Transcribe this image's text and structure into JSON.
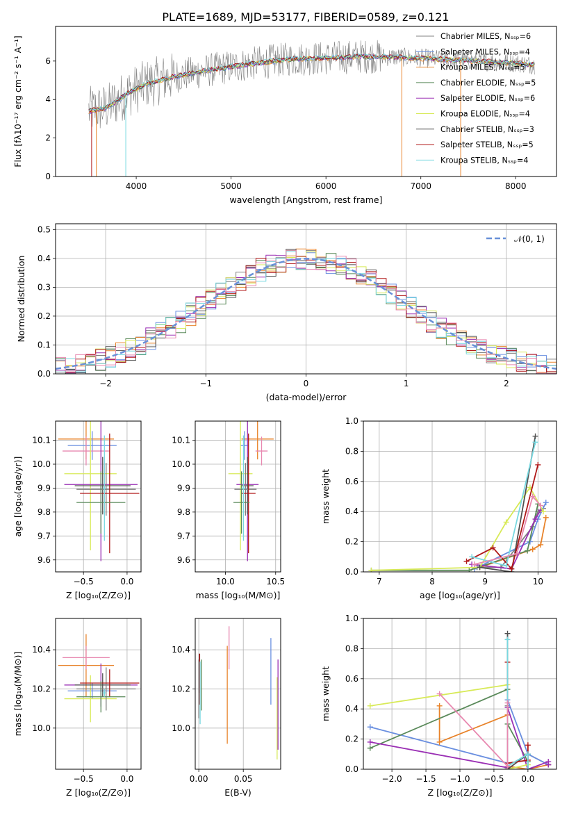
{
  "figure": {
    "title": "PLATE=1689, MJD=53177, FIBERID=0589, z=0.121"
  },
  "colors": {
    "chabrier_miles": "#808080",
    "salpeter_miles": "#6a8fe0",
    "kroupa_miles": "#e8832a",
    "chabrier_elodie": "#5a8a5a",
    "salpeter_elodie": "#9a2fb4",
    "kroupa_elodie": "#d8ea58",
    "chabrier_stelib": "#505050",
    "salpeter_stelib": "#b01818",
    "kroupa_stelib": "#78d8e0",
    "pink": "#e888b0",
    "normal_curve": "#6890d8"
  },
  "chart_data": [
    {
      "id": "spectrum",
      "type": "line",
      "xlabel": "wavelength [Angstrom, rest frame]",
      "ylabel": "Flux [fλ10⁻¹⁷ erg cm⁻² s⁻¹ A⁻¹]",
      "xlim": [
        3150,
        8430
      ],
      "ylim": [
        0,
        7.8
      ],
      "xticks": [
        4000,
        5000,
        6000,
        7000,
        8000
      ],
      "yticks": [
        0,
        2,
        4,
        6
      ],
      "legend_position": "top-right",
      "legend": [
        {
          "label": "Chabrier MILES, Nₛₛₚ=6",
          "color": "chabrier_miles"
        },
        {
          "label": "Salpeter MILES, Nₛₛₚ=4",
          "color": "salpeter_miles"
        },
        {
          "label": "Kroupa MILES, Nₛₛₚ=5",
          "color": "kroupa_miles"
        },
        {
          "label": "Chabrier ELODIE, Nₛₛₚ=5",
          "color": "chabrier_elodie"
        },
        {
          "label": "Salpeter ELODIE, Nₛₛₚ=6",
          "color": "salpeter_elodie"
        },
        {
          "label": "Kroupa ELODIE, Nₛₛₚ=4",
          "color": "kroupa_elodie"
        },
        {
          "label": "Chabrier STELIB, Nₛₛₚ=3",
          "color": "chabrier_stelib"
        },
        {
          "label": "Salpeter STELIB, Nₛₛₚ=5",
          "color": "salpeter_stelib"
        },
        {
          "label": "Kroupa STELIB, Nₛₛₚ=4",
          "color": "kroupa_stelib"
        }
      ],
      "continuum": [
        [
          3500,
          3.4
        ],
        [
          3700,
          3.6
        ],
        [
          3900,
          4.3
        ],
        [
          4100,
          4.8
        ],
        [
          4400,
          5.2
        ],
        [
          4800,
          5.55
        ],
        [
          5200,
          5.85
        ],
        [
          5600,
          6.1
        ],
        [
          6000,
          6.15
        ],
        [
          6400,
          6.25
        ],
        [
          6800,
          6.2
        ],
        [
          7200,
          6.1
        ],
        [
          7600,
          6.0
        ],
        [
          8000,
          5.9
        ],
        [
          8200,
          5.8
        ]
      ]
    },
    {
      "id": "residuals",
      "type": "histogram",
      "xlabel": "(data-model)/error",
      "ylabel": "Normed distribution",
      "xlim": [
        -2.5,
        2.5
      ],
      "ylim": [
        0,
        0.52
      ],
      "xticks": [
        -2,
        -1,
        0,
        1,
        2
      ],
      "yticks": [
        0.0,
        0.1,
        0.2,
        0.3,
        0.4,
        0.5
      ],
      "bin_width": 0.1,
      "legend_position": "top-right",
      "normal_label": "𝒩(0, 1)",
      "normal_mean": 0,
      "normal_sigma": 1
    },
    {
      "id": "age_vs_Z",
      "type": "errorbar",
      "xlabel": "Z [log₁₀(Z/Z⊙)]",
      "ylabel": "age  [log₁₀(age/yr)]",
      "xlim": [
        -0.82,
        0.16
      ],
      "ylim": [
        9.55,
        10.18
      ],
      "xticks": [
        -0.5,
        0.0
      ],
      "yticks": [
        9.6,
        9.7,
        9.8,
        9.9,
        10.0,
        10.1
      ],
      "points": [
        {
          "x": -0.47,
          "xerr": 0.32,
          "y": 10.105,
          "yerr": 0.085,
          "color": "kroupa_miles"
        },
        {
          "x": -0.4,
          "xerr": 0.28,
          "y": 10.078,
          "yerr": 0.06,
          "color": "salpeter_miles"
        },
        {
          "x": -0.47,
          "xerr": 0.27,
          "y": 10.055,
          "yerr": 0.06,
          "color": "pink"
        },
        {
          "x": -0.42,
          "xerr": 0.3,
          "y": 9.96,
          "yerr": 0.32,
          "color": "kroupa_elodie"
        },
        {
          "x": -0.3,
          "xerr": 0.42,
          "y": 9.915,
          "yerr": 0.32,
          "color": "salpeter_elodie"
        },
        {
          "x": -0.28,
          "xerr": 0.32,
          "y": 9.91,
          "yerr": 0.12,
          "color": "chabrier_stelib"
        },
        {
          "x": -0.24,
          "xerr": 0.34,
          "y": 9.895,
          "yerr": 0.11,
          "color": "chabrier_miles"
        },
        {
          "x": -0.2,
          "xerr": 0.34,
          "y": 9.878,
          "yerr": 0.25,
          "color": "salpeter_stelib"
        },
        {
          "x": -0.3,
          "xerr": 0.28,
          "y": 9.84,
          "yerr": 0.13,
          "color": "chabrier_elodie"
        },
        {
          "x": -0.26,
          "xerr": 0.02,
          "y": 9.9,
          "yerr": 0.22,
          "color": "kroupa_stelib"
        }
      ]
    },
    {
      "id": "age_vs_mass",
      "type": "errorbar",
      "xlabel": "mass [log₁₀(M/M⊙)]",
      "ylabel": "",
      "xlim": [
        9.7,
        10.55
      ],
      "ylim": [
        9.55,
        10.18
      ],
      "xticks": [
        10.0,
        10.5
      ],
      "yticks": [
        9.6,
        9.7,
        9.8,
        9.9,
        10.0,
        10.1
      ],
      "points": [
        {
          "x": 10.32,
          "xerr": 0.16,
          "y": 10.105,
          "yerr": 0.085,
          "color": "kroupa_miles"
        },
        {
          "x": 10.19,
          "xerr": 0.04,
          "y": 10.078,
          "yerr": 0.06,
          "color": "salpeter_miles"
        },
        {
          "x": 10.36,
          "xerr": 0.06,
          "y": 10.055,
          "yerr": 0.06,
          "color": "pink"
        },
        {
          "x": 10.15,
          "xerr": 0.12,
          "y": 9.96,
          "yerr": 0.32,
          "color": "kroupa_elodie"
        },
        {
          "x": 10.22,
          "xerr": 0.11,
          "y": 9.915,
          "yerr": 0.32,
          "color": "salpeter_elodie"
        },
        {
          "x": 10.22,
          "xerr": 0.06,
          "y": 9.91,
          "yerr": 0.12,
          "color": "chabrier_stelib"
        },
        {
          "x": 10.2,
          "xerr": 0.11,
          "y": 9.895,
          "yerr": 0.11,
          "color": "chabrier_miles"
        },
        {
          "x": 10.23,
          "xerr": 0.07,
          "y": 9.878,
          "yerr": 0.25,
          "color": "salpeter_stelib"
        },
        {
          "x": 10.16,
          "xerr": 0.08,
          "y": 9.84,
          "yerr": 0.13,
          "color": "chabrier_elodie"
        },
        {
          "x": 10.18,
          "xerr": 0.02,
          "y": 9.9,
          "yerr": 0.22,
          "color": "kroupa_stelib"
        }
      ]
    },
    {
      "id": "weight_vs_age",
      "type": "line",
      "xlabel": "age  [log₁₀(age/yr)]",
      "ylabel": "mass weight",
      "xlim": [
        6.7,
        10.35
      ],
      "ylim": [
        0,
        1.0
      ],
      "xticks": [
        7,
        8,
        9,
        10
      ],
      "yticks": [
        0.0,
        0.2,
        0.4,
        0.6,
        0.8,
        1.0
      ],
      "series": [
        {
          "color": "chabrier_miles",
          "x": [
            8.85,
            9.3,
            9.9,
            10.0,
            10.1
          ],
          "y": [
            0.03,
            0.03,
            0.3,
            0.4,
            0.42
          ]
        },
        {
          "color": "salpeter_miles",
          "x": [
            8.8,
            9.85,
            10.0,
            10.15
          ],
          "y": [
            0.02,
            0.2,
            0.35,
            0.46
          ]
        },
        {
          "color": "kroupa_miles",
          "x": [
            8.9,
            9.9,
            10.05,
            10.15
          ],
          "y": [
            0.03,
            0.15,
            0.18,
            0.36
          ]
        },
        {
          "color": "chabrier_elodie",
          "x": [
            6.85,
            8.7,
            9.8,
            10.0
          ],
          "y": [
            0.01,
            0.01,
            0.14,
            0.45
          ]
        },
        {
          "color": "salpeter_elodie",
          "x": [
            8.75,
            9.5,
            9.95,
            10.05
          ],
          "y": [
            0.05,
            0.02,
            0.35,
            0.41
          ]
        },
        {
          "color": "kroupa_elodie",
          "x": [
            6.85,
            8.9,
            9.4,
            9.85,
            10.1
          ],
          "y": [
            0.01,
            0.03,
            0.33,
            0.56,
            0.4
          ]
        },
        {
          "color": "chabrier_stelib",
          "x": [
            8.9,
            9.5,
            9.95
          ],
          "y": [
            0.03,
            0.0,
            0.9
          ]
        },
        {
          "color": "salpeter_stelib",
          "x": [
            8.65,
            9.15,
            9.5,
            10.0
          ],
          "y": [
            0.07,
            0.16,
            0.02,
            0.71
          ]
        },
        {
          "color": "kroupa_stelib",
          "x": [
            8.75,
            9.4,
            9.95
          ],
          "y": [
            0.1,
            0.04,
            0.86
          ]
        },
        {
          "color": "pink",
          "x": [
            8.8,
            9.6,
            9.9,
            10.05
          ],
          "y": [
            0.05,
            0.12,
            0.5,
            0.44
          ]
        }
      ]
    },
    {
      "id": "mass_vs_Z",
      "type": "errorbar",
      "xlabel": "Z [log₁₀(Z/Z⊙)]",
      "ylabel": "mass [log₁₀(M/M⊙)]",
      "xlim": [
        -0.82,
        0.16
      ],
      "ylim": [
        9.79,
        10.56
      ],
      "xticks": [
        -0.5,
        0.0
      ],
      "yticks": [
        10.0,
        10.2,
        10.4
      ],
      "points": [
        {
          "x": -0.47,
          "xerr": 0.32,
          "y": 10.32,
          "yerr": 0.16,
          "color": "kroupa_miles"
        },
        {
          "x": -0.4,
          "xerr": 0.28,
          "y": 10.19,
          "yerr": 0.04,
          "color": "salpeter_miles"
        },
        {
          "x": -0.47,
          "xerr": 0.27,
          "y": 10.36,
          "yerr": 0.06,
          "color": "pink"
        },
        {
          "x": -0.42,
          "xerr": 0.3,
          "y": 10.15,
          "yerr": 0.12,
          "color": "kroupa_elodie"
        },
        {
          "x": -0.3,
          "xerr": 0.42,
          "y": 10.22,
          "yerr": 0.11,
          "color": "salpeter_elodie"
        },
        {
          "x": -0.28,
          "xerr": 0.32,
          "y": 10.22,
          "yerr": 0.06,
          "color": "chabrier_stelib"
        },
        {
          "x": -0.24,
          "xerr": 0.34,
          "y": 10.2,
          "yerr": 0.11,
          "color": "chabrier_miles"
        },
        {
          "x": -0.2,
          "xerr": 0.34,
          "y": 10.23,
          "yerr": 0.07,
          "color": "salpeter_stelib"
        },
        {
          "x": -0.3,
          "xerr": 0.28,
          "y": 10.16,
          "yerr": 0.08,
          "color": "chabrier_elodie"
        },
        {
          "x": -0.26,
          "xerr": 0.02,
          "y": 10.18,
          "yerr": 0.02,
          "color": "kroupa_stelib"
        }
      ]
    },
    {
      "id": "mass_vs_ebv",
      "type": "errorbar",
      "xlabel": "E(B-V)",
      "ylabel": "",
      "xlim": [
        -0.004,
        0.092
      ],
      "ylim": [
        9.79,
        10.56
      ],
      "xticks": [
        0.0,
        0.05
      ],
      "yticks": [
        10.0,
        10.2,
        10.4
      ],
      "points": [
        {
          "x": 0.032,
          "xerr": 0,
          "y": 10.17,
          "yerr": 0.25,
          "color": "kroupa_miles"
        },
        {
          "x": 0.081,
          "xerr": 0,
          "y": 10.29,
          "yerr": 0.17,
          "color": "salpeter_miles"
        },
        {
          "x": 0.034,
          "xerr": 0,
          "y": 10.41,
          "yerr": 0.11,
          "color": "pink"
        },
        {
          "x": 0.088,
          "xerr": 0,
          "y": 10.05,
          "yerr": 0.21,
          "color": "kroupa_elodie"
        },
        {
          "x": 0.089,
          "xerr": 0,
          "y": 10.12,
          "yerr": 0.23,
          "color": "salpeter_elodie"
        },
        {
          "x": 0.0005,
          "xerr": 0,
          "y": 10.28,
          "yerr": 0.1,
          "color": "chabrier_stelib"
        },
        {
          "x": 0.0,
          "xerr": 0,
          "y": 10.2,
          "yerr": 0.15,
          "color": "chabrier_miles"
        },
        {
          "x": 0.001,
          "xerr": 0,
          "y": 10.25,
          "yerr": 0.13,
          "color": "salpeter_stelib"
        },
        {
          "x": 0.003,
          "xerr": 0,
          "y": 10.22,
          "yerr": 0.13,
          "color": "chabrier_elodie"
        },
        {
          "x": 0.0015,
          "xerr": 0,
          "y": 10.18,
          "yerr": 0.16,
          "color": "kroupa_stelib"
        }
      ]
    },
    {
      "id": "weight_vs_Z",
      "type": "line",
      "xlabel": "Z [log₁₀(Z/Z⊙)]",
      "ylabel": "mass weight",
      "xlim": [
        -2.42,
        0.42
      ],
      "ylim": [
        0,
        1.0
      ],
      "xticks": [
        -2.0,
        -1.5,
        -1.0,
        -0.5,
        0.0
      ],
      "yticks": [
        0.0,
        0.2,
        0.4,
        0.6,
        0.8,
        1.0
      ],
      "series": [
        {
          "color": "chabrier_miles",
          "x": [
            -0.3,
            -0.3,
            0.0,
            0.3
          ],
          "y": [
            0.42,
            0.02,
            0.1,
            0.03
          ]
        },
        {
          "color": "salpeter_miles",
          "x": [
            -2.32,
            -0.3,
            -0.3,
            0.0,
            0.3
          ],
          "y": [
            0.28,
            0.04,
            0.46,
            0.1,
            0.03
          ]
        },
        {
          "color": "kroupa_miles",
          "x": [
            -1.3,
            -1.3,
            -0.3,
            -0.3,
            0.0,
            0.3
          ],
          "y": [
            0.42,
            0.18,
            0.36,
            0.02,
            0.0,
            0.03
          ]
        },
        {
          "color": "chabrier_elodie",
          "x": [
            -2.32,
            -0.3,
            -0.3,
            0.0,
            0.0
          ],
          "y": [
            0.14,
            0.53,
            0.3,
            0.05,
            0.0
          ]
        },
        {
          "color": "salpeter_elodie",
          "x": [
            -2.32,
            -0.3,
            -0.3,
            0.0,
            0.3,
            0.3
          ],
          "y": [
            0.18,
            0.01,
            0.41,
            0.0,
            0.05,
            0.03
          ]
        },
        {
          "color": "kroupa_elodie",
          "x": [
            -2.32,
            -0.3,
            -0.3,
            0.0
          ],
          "y": [
            0.42,
            0.56,
            0.0,
            0.03
          ]
        },
        {
          "color": "chabrier_stelib",
          "x": [
            -0.3,
            -0.3,
            0.0
          ],
          "y": [
            0.9,
            0.0,
            0.1
          ]
        },
        {
          "color": "salpeter_stelib",
          "x": [
            -0.3,
            -0.3,
            -0.3,
            0.0,
            0.0
          ],
          "y": [
            0.71,
            0.02,
            0.04,
            0.06,
            0.16
          ]
        },
        {
          "color": "kroupa_stelib",
          "x": [
            -0.3,
            -0.3,
            0.0,
            0.0
          ],
          "y": [
            0.86,
            0.02,
            0.1,
            0.0
          ]
        },
        {
          "color": "pink",
          "x": [
            -1.3,
            -0.3,
            -0.3
          ],
          "y": [
            0.5,
            0.02,
            0.44
          ]
        }
      ]
    }
  ]
}
